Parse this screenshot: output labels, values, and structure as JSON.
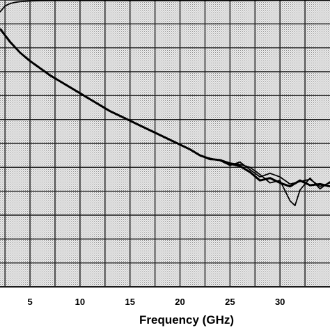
{
  "chart_data": {
    "type": "line",
    "xlabel": "Frequency (GHz)",
    "ylabel": "",
    "title": "",
    "xlim": [
      2,
      35
    ],
    "ylim": [
      0,
      12
    ],
    "x_ticks": [
      5,
      10,
      15,
      20,
      25,
      30
    ],
    "grid": true,
    "grid_style": "dark gridlines on dotted gray background",
    "legend": "none",
    "series": [
      {
        "x": [
          2,
          2.5,
          3,
          3.5,
          4,
          5,
          6,
          8,
          10,
          12,
          15,
          20,
          25,
          30,
          35
        ],
        "y": [
          11.5,
          11.75,
          11.85,
          11.9,
          11.93,
          11.96,
          11.97,
          11.98,
          11.98,
          11.98,
          11.98,
          11.98,
          11.98,
          11.99,
          11.99
        ]
      },
      {
        "x": [
          2,
          3,
          4,
          5,
          6,
          7,
          8,
          9,
          10,
          11,
          12,
          13,
          14,
          15,
          16,
          17,
          18,
          19,
          20,
          21,
          22,
          23,
          24,
          25,
          26,
          27,
          28,
          29,
          30,
          31,
          32,
          33,
          34,
          35
        ],
        "y": [
          10.8,
          10.25,
          9.8,
          9.45,
          9.15,
          8.85,
          8.6,
          8.35,
          8.1,
          7.85,
          7.6,
          7.35,
          7.15,
          6.95,
          6.75,
          6.55,
          6.35,
          6.15,
          5.95,
          5.75,
          5.5,
          5.35,
          5.3,
          5.15,
          5.05,
          4.8,
          4.45,
          4.55,
          4.35,
          4.2,
          4.45,
          4.25,
          4.3,
          4.2
        ]
      },
      {
        "x": [
          22,
          23,
          24,
          25,
          26,
          27,
          28,
          29,
          30,
          31,
          32,
          33,
          34,
          35
        ],
        "y": [
          5.48,
          5.38,
          5.28,
          5.08,
          5.22,
          4.9,
          4.6,
          4.75,
          4.6,
          4.3,
          4.4,
          4.5,
          4.2,
          4.35
        ]
      },
      {
        "x": [
          22,
          23,
          24,
          25,
          26,
          27,
          28,
          29,
          30,
          31,
          31.5,
          32,
          33,
          34,
          35
        ],
        "y": [
          5.5,
          5.32,
          5.32,
          5.18,
          5.12,
          5.0,
          4.7,
          4.35,
          4.45,
          3.6,
          3.4,
          4.05,
          4.55,
          4.1,
          4.4
        ]
      }
    ]
  },
  "colors": {
    "background": "#cfcfcf",
    "grid": "#1a1a1a",
    "line": "#000000"
  }
}
